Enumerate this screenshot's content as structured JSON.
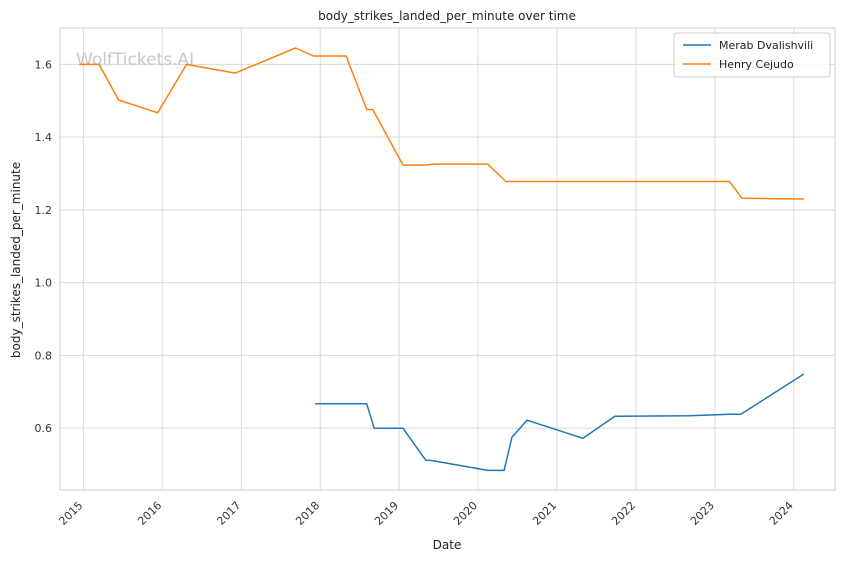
{
  "watermark": "WolfTickets.AI",
  "chart_data": {
    "type": "line",
    "title": "body_strikes_landed_per_minute over time",
    "xlabel": "Date",
    "ylabel": "body_strikes_landed_per_minute",
    "x_ticks": [
      "2015",
      "2016",
      "2017",
      "2018",
      "2019",
      "2020",
      "2021",
      "2022",
      "2023",
      "2024"
    ],
    "y_ticks": [
      "0.6",
      "0.8",
      "1.0",
      "1.2",
      "1.4",
      "1.6"
    ],
    "xlim": [
      "2014-09-15",
      "2024-07-10"
    ],
    "ylim": [
      0.43,
      1.7
    ],
    "grid": true,
    "legend_position": "top-right",
    "series": [
      {
        "name": "Merab Dvalishvili",
        "color": "#1f77b4",
        "x": [
          "2017-12-09",
          "2018-08-04",
          "2018-09-08",
          "2019-01-19",
          "2019-05-04",
          "2019-06-01",
          "2020-02-15",
          "2020-05-01",
          "2020-06-06",
          "2020-08-15",
          "2021-05-01",
          "2021-09-25",
          "2022-09-01",
          "2023-03-11",
          "2023-05-01",
          "2024-02-17"
        ],
        "y": [
          0.667,
          0.667,
          0.6,
          0.6,
          0.512,
          0.511,
          0.484,
          0.484,
          0.575,
          0.622,
          0.572,
          0.633,
          0.634,
          0.638,
          0.638,
          0.749
        ]
      },
      {
        "name": "Henry Cejudo",
        "color": "#ff7f0e",
        "x": [
          "2014-12-13",
          "2015-03-15",
          "2015-06-13",
          "2015-12-11",
          "2016-04-23",
          "2016-12-03",
          "2017-09-09",
          "2017-12-01",
          "2018-05-01",
          "2018-08-04",
          "2018-09-01",
          "2019-01-19",
          "2019-05-01",
          "2019-06-08",
          "2020-02-15",
          "2020-05-09",
          "2023-03-10",
          "2023-05-06",
          "2024-02-17"
        ],
        "y": [
          1.6,
          1.6,
          1.502,
          1.467,
          1.6,
          1.576,
          1.645,
          1.623,
          1.623,
          1.476,
          1.476,
          1.323,
          1.323,
          1.326,
          1.326,
          1.278,
          1.278,
          1.232,
          1.23
        ]
      }
    ]
  }
}
